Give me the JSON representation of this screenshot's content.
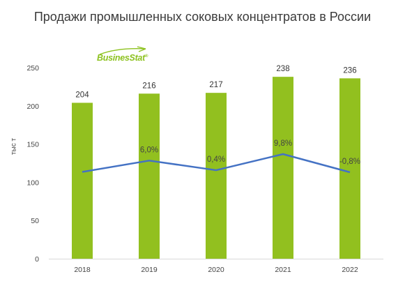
{
  "chart_data": {
    "type": "bar",
    "title": "Продажи промышленных соковых концентратов в России",
    "ylabel": "тыс т",
    "xlabel": "",
    "categories": [
      "2018",
      "2019",
      "2020",
      "2021",
      "2022"
    ],
    "series": [
      {
        "name": "",
        "type": "bar",
        "values": [
          204,
          216,
          217,
          238,
          236
        ],
        "labels": [
          "204",
          "216",
          "217",
          "238",
          "236"
        ],
        "color": "#92c01f"
      },
      {
        "name": "",
        "type": "line",
        "values": [
          null,
          6.0,
          0.4,
          9.8,
          -0.8
        ],
        "labels": [
          "",
          "6,0%",
          "0,4%",
          "9,8%",
          "-0,8%"
        ],
        "color": "#4472c4"
      }
    ],
    "ylim": [
      0,
      250
    ],
    "yticks": [
      0,
      50,
      100,
      150,
      200,
      250
    ],
    "grid": false,
    "legend": "none"
  },
  "logo": {
    "text": "BusinesStat",
    "mark": "®"
  }
}
